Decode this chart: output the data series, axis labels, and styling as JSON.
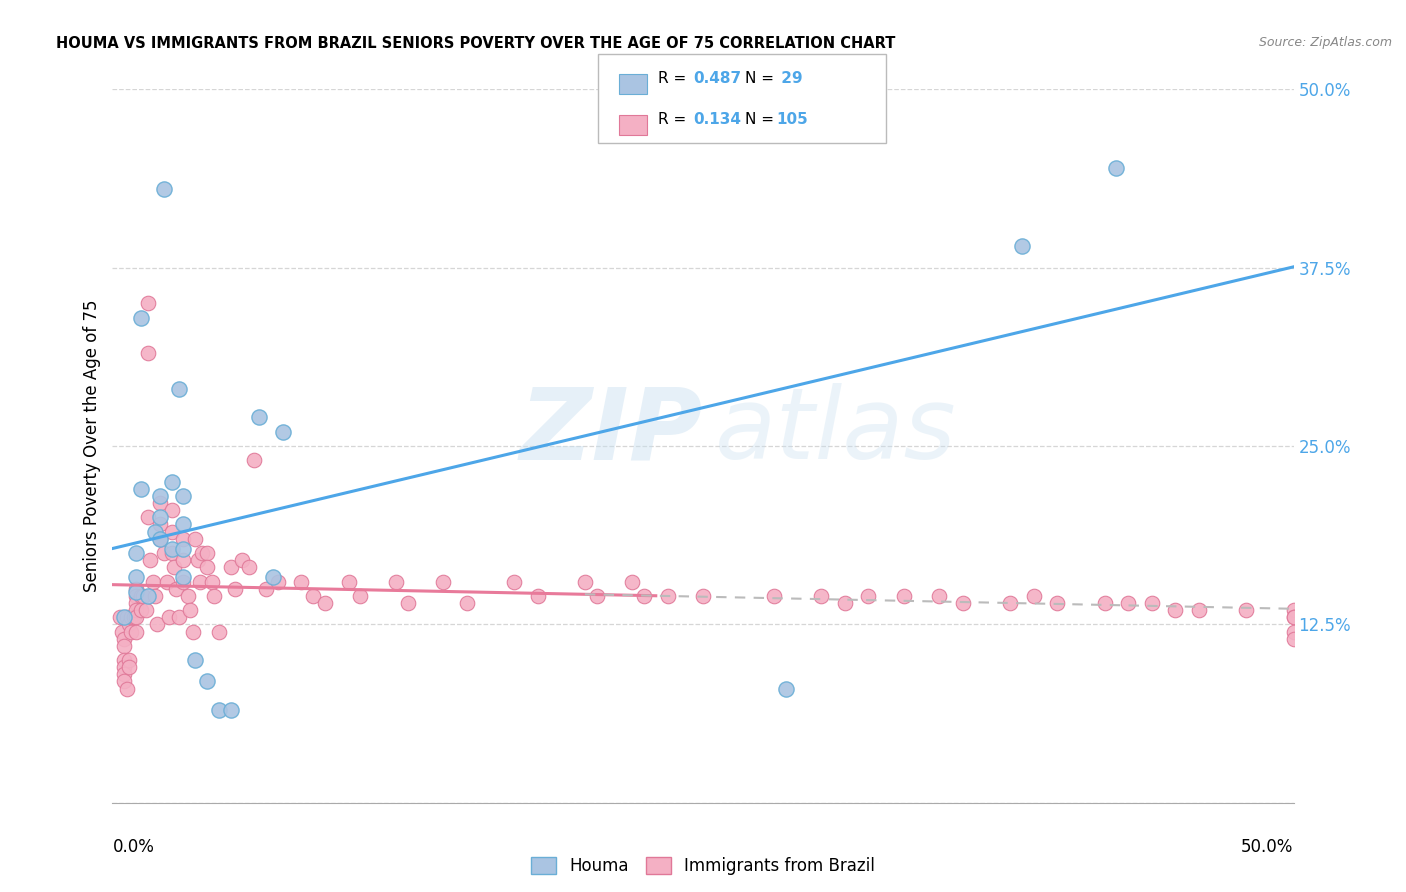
{
  "title": "HOUMA VS IMMIGRANTS FROM BRAZIL SENIORS POVERTY OVER THE AGE OF 75 CORRELATION CHART",
  "source": "Source: ZipAtlas.com",
  "ylabel": "Seniors Poverty Over the Age of 75",
  "xlim": [
    0.0,
    0.5
  ],
  "ylim": [
    0.0,
    0.5
  ],
  "yticks": [
    0.0,
    0.125,
    0.25,
    0.375,
    0.5
  ],
  "ytick_labels": [
    "",
    "12.5%",
    "25.0%",
    "37.5%",
    "50.0%"
  ],
  "houma_color": "#aac4e2",
  "houma_edge": "#6aaed6",
  "brazil_color": "#f4b0c4",
  "brazil_edge": "#e07898",
  "line_blue": "#4da6e8",
  "line_pink": "#e87a9a",
  "line_gray_dash": "#bbbbbb",
  "houma_x": [
    0.005,
    0.022,
    0.018,
    0.028,
    0.012,
    0.01,
    0.01,
    0.01,
    0.015,
    0.02,
    0.02,
    0.02,
    0.025,
    0.025,
    0.03,
    0.03,
    0.03,
    0.03,
    0.035,
    0.04,
    0.045,
    0.05,
    0.062,
    0.068,
    0.072,
    0.385,
    0.425,
    0.012,
    0.285
  ],
  "houma_y": [
    0.13,
    0.43,
    0.19,
    0.29,
    0.22,
    0.175,
    0.158,
    0.148,
    0.145,
    0.215,
    0.2,
    0.185,
    0.225,
    0.178,
    0.215,
    0.195,
    0.178,
    0.158,
    0.1,
    0.085,
    0.065,
    0.065,
    0.27,
    0.158,
    0.26,
    0.39,
    0.445,
    0.34,
    0.08
  ],
  "brazil_x": [
    0.003,
    0.004,
    0.005,
    0.005,
    0.005,
    0.005,
    0.005,
    0.005,
    0.006,
    0.006,
    0.007,
    0.007,
    0.007,
    0.008,
    0.008,
    0.009,
    0.01,
    0.01,
    0.01,
    0.01,
    0.01,
    0.01,
    0.012,
    0.012,
    0.013,
    0.014,
    0.015,
    0.015,
    0.015,
    0.016,
    0.017,
    0.018,
    0.019,
    0.02,
    0.02,
    0.02,
    0.022,
    0.023,
    0.024,
    0.025,
    0.025,
    0.025,
    0.026,
    0.027,
    0.028,
    0.03,
    0.03,
    0.03,
    0.032,
    0.033,
    0.034,
    0.035,
    0.036,
    0.037,
    0.038,
    0.04,
    0.04,
    0.042,
    0.043,
    0.045,
    0.05,
    0.052,
    0.055,
    0.058,
    0.06,
    0.065,
    0.07,
    0.08,
    0.085,
    0.09,
    0.1,
    0.105,
    0.12,
    0.125,
    0.14,
    0.15,
    0.17,
    0.18,
    0.2,
    0.205,
    0.22,
    0.225,
    0.235,
    0.25,
    0.28,
    0.3,
    0.31,
    0.32,
    0.335,
    0.35,
    0.36,
    0.38,
    0.39,
    0.4,
    0.42,
    0.43,
    0.44,
    0.45,
    0.46,
    0.48,
    0.5,
    0.5,
    0.5,
    0.5,
    0.5
  ],
  "brazil_y": [
    0.13,
    0.12,
    0.115,
    0.11,
    0.1,
    0.095,
    0.09,
    0.085,
    0.08,
    0.13,
    0.125,
    0.1,
    0.095,
    0.13,
    0.12,
    0.13,
    0.15,
    0.145,
    0.14,
    0.135,
    0.13,
    0.12,
    0.145,
    0.135,
    0.145,
    0.135,
    0.35,
    0.315,
    0.2,
    0.17,
    0.155,
    0.145,
    0.125,
    0.21,
    0.195,
    0.185,
    0.175,
    0.155,
    0.13,
    0.205,
    0.19,
    0.175,
    0.165,
    0.15,
    0.13,
    0.185,
    0.17,
    0.155,
    0.145,
    0.135,
    0.12,
    0.185,
    0.17,
    0.155,
    0.175,
    0.175,
    0.165,
    0.155,
    0.145,
    0.12,
    0.165,
    0.15,
    0.17,
    0.165,
    0.24,
    0.15,
    0.155,
    0.155,
    0.145,
    0.14,
    0.155,
    0.145,
    0.155,
    0.14,
    0.155,
    0.14,
    0.155,
    0.145,
    0.155,
    0.145,
    0.155,
    0.145,
    0.145,
    0.145,
    0.145,
    0.145,
    0.14,
    0.145,
    0.145,
    0.145,
    0.14,
    0.14,
    0.145,
    0.14,
    0.14,
    0.14,
    0.14,
    0.135,
    0.135,
    0.135,
    0.135,
    0.13,
    0.13,
    0.12,
    0.115
  ]
}
